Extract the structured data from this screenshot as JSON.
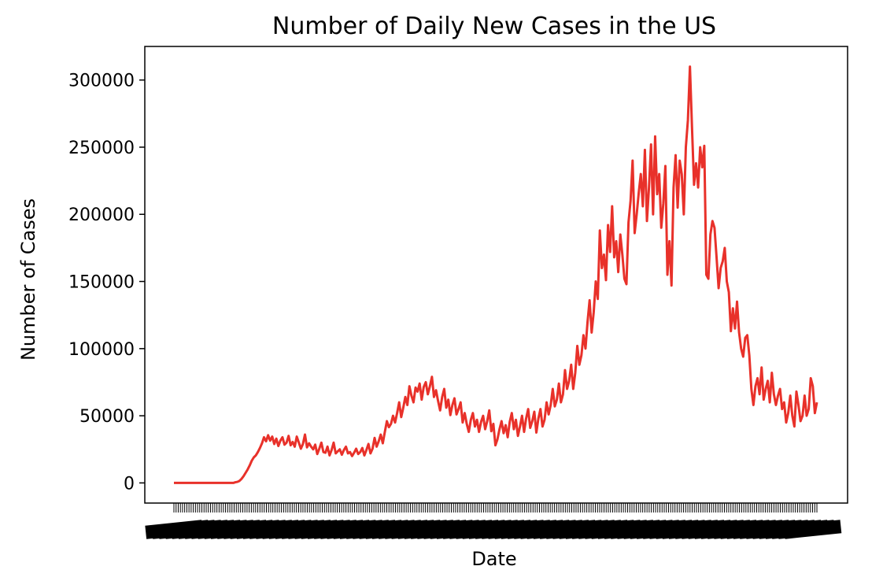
{
  "chart_data": {
    "type": "line",
    "title": "Number of Daily New Cases in the US",
    "xlabel": "Date",
    "ylabel": "Number of Cases",
    "ylim": [
      -15000,
      325000
    ],
    "yticks": [
      0,
      50000,
      100000,
      150000,
      200000,
      250000,
      300000
    ],
    "x_tick_labels_legible": false,
    "grid": false,
    "legend": "none",
    "line_color": "#e8312a",
    "series": [
      {
        "values": [
          0,
          0,
          0,
          0,
          0,
          0,
          0,
          0,
          0,
          0,
          0,
          0,
          0,
          0,
          0,
          0,
          0,
          0,
          0,
          0,
          0,
          0,
          0,
          0,
          0,
          0,
          0,
          0,
          0,
          0,
          500,
          800,
          1500,
          3000,
          5000,
          7500,
          10000,
          13000,
          16500,
          19000,
          20500,
          23000,
          26000,
          29500,
          34000,
          31000,
          35500,
          31500,
          34500,
          29000,
          33000,
          27500,
          31500,
          34000,
          28500,
          30000,
          35000,
          28000,
          30500,
          27000,
          34500,
          30000,
          25500,
          29000,
          36000,
          26500,
          29500,
          27000,
          25000,
          28500,
          21500,
          25500,
          30000,
          23000,
          22500,
          27000,
          20500,
          24500,
          30000,
          22000,
          23500,
          25000,
          21000,
          24500,
          27000,
          22000,
          23000,
          20000,
          22500,
          25500,
          21500,
          23000,
          26000,
          20500,
          24500,
          29000,
          22000,
          25500,
          33500,
          27000,
          31000,
          36000,
          29500,
          38000,
          46000,
          41500,
          44000,
          50000,
          45000,
          52000,
          60000,
          49000,
          56000,
          64000,
          58000,
          72000,
          65000,
          60000,
          71000,
          68000,
          74000,
          62000,
          71500,
          75000,
          66000,
          72000,
          79000,
          64000,
          69000,
          61000,
          54000,
          64000,
          70000,
          56000,
          62000,
          50500,
          58000,
          63000,
          51000,
          55000,
          60000,
          45000,
          52000,
          44000,
          38000,
          47000,
          52000,
          42000,
          47000,
          38000,
          45500,
          50000,
          40000,
          46000,
          54000,
          38500,
          44000,
          28000,
          32500,
          40000,
          46000,
          37000,
          43000,
          34000,
          45500,
          52000,
          40000,
          47000,
          35000,
          42000,
          50000,
          38000,
          48000,
          55000,
          41000,
          46000,
          53000,
          37500,
          48000,
          55000,
          42000,
          47000,
          60000,
          51000,
          58000,
          70000,
          57000,
          62000,
          74000,
          60000,
          66000,
          84000,
          70000,
          76000,
          88000,
          70000,
          82000,
          102000,
          88000,
          95000,
          110000,
          100000,
          120000,
          136000,
          112000,
          127000,
          150000,
          137000,
          188000,
          160000,
          170000,
          151000,
          192000,
          172000,
          206000,
          168000,
          180000,
          157000,
          185000,
          170000,
          152000,
          148000,
          194000,
          210000,
          240000,
          186000,
          200000,
          216000,
          230000,
          206000,
          248000,
          195000,
          220000,
          252000,
          200000,
          258000,
          215000,
          230000,
          190000,
          208000,
          236000,
          155000,
          180000,
          147000,
          220000,
          244000,
          205000,
          240000,
          230000,
          200000,
          250000,
          270000,
          310000,
          265000,
          222000,
          238000,
          220000,
          250000,
          235000,
          251000,
          155000,
          152000,
          185000,
          195000,
          190000,
          168000,
          145000,
          160000,
          165000,
          175000,
          150000,
          142000,
          113000,
          130000,
          115000,
          135000,
          112000,
          100000,
          94000,
          108000,
          110000,
          95000,
          70000,
          58000,
          72000,
          78000,
          66000,
          86000,
          62000,
          70000,
          76000,
          60000,
          82000,
          66000,
          58000,
          65000,
          70000,
          55000,
          60000,
          45000,
          52000,
          65000,
          50000,
          42000,
          68000,
          58000,
          46000,
          50000,
          65000,
          50000,
          55000,
          78000,
          72000,
          52000,
          60000
        ]
      }
    ]
  }
}
